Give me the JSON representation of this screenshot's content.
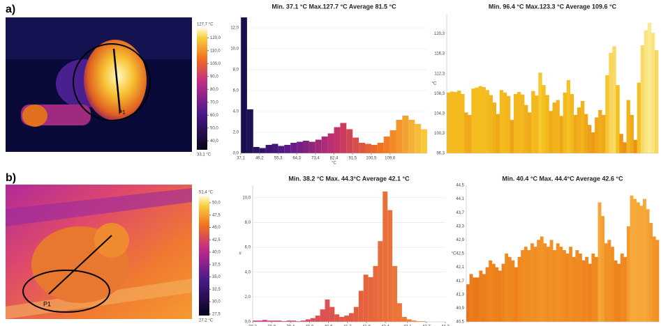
{
  "panels": [
    {
      "label": "a)",
      "point": "P1",
      "colorbar": {
        "lim": [
          33.1,
          127.7
        ],
        "ends": [
          {
            "value": 127.7,
            "label": "127,7 °C"
          },
          {
            "value": 33.1,
            "label": "33,1 °C"
          }
        ],
        "ticks": [
          {
            "value": 40,
            "label": "40,0"
          },
          {
            "value": 50,
            "label": "50,0"
          },
          {
            "value": 60,
            "label": "60,0"
          },
          {
            "value": 70,
            "label": "70,0"
          },
          {
            "value": 80,
            "label": "80,0"
          },
          {
            "value": 90,
            "label": "90,0"
          },
          {
            "value": 100,
            "label": "100,0"
          },
          {
            "value": 110,
            "label": "110,0"
          },
          {
            "value": 120,
            "label": "120,0"
          }
        ]
      }
    },
    {
      "label": "b)",
      "point": "P1",
      "colorbar": {
        "lim": [
          27.2,
          51.4
        ],
        "ends": [
          {
            "value": 51.4,
            "label": "51,4 °C"
          },
          {
            "value": 27.2,
            "label": "27,2 °C"
          }
        ],
        "ticks": [
          {
            "value": 27.5,
            "label": "27,5"
          },
          {
            "value": 30,
            "label": "30,0"
          },
          {
            "value": 32.5,
            "label": "32,5"
          },
          {
            "value": 35,
            "label": "35,0"
          },
          {
            "value": 37.5,
            "label": "37,5"
          },
          {
            "value": 40,
            "label": "40,0"
          },
          {
            "value": 42.5,
            "label": "42,5"
          },
          {
            "value": 45,
            "label": "45,0"
          },
          {
            "value": 47.5,
            "label": "47,5"
          },
          {
            "value": 50,
            "label": "50,0"
          }
        ]
      }
    }
  ],
  "chart_data": [
    {
      "type": "histogram",
      "title": "Min. 37.1 °C    Max.127.7 °C   Average  81.5 °C",
      "xlabel": "°C",
      "bins": [
        37.1,
        40.12,
        43.14,
        46.16,
        49.18,
        52.2,
        55.22,
        58.24,
        61.26,
        64.28,
        67.3,
        70.32,
        73.34,
        76.36,
        79.38,
        82.4,
        85.42,
        88.44,
        91.46,
        94.48,
        97.5,
        100.52,
        103.54,
        106.56,
        109.58,
        112.6,
        115.62,
        118.64,
        121.66,
        124.68,
        127.7
      ],
      "values": [
        13,
        4.2,
        0.6,
        0.5,
        0.8,
        0.9,
        0.7,
        0.8,
        1.0,
        1.1,
        1.2,
        1.1,
        1.3,
        1.6,
        1.9,
        2.5,
        2.9,
        2.3,
        1.5,
        1.0,
        0.9,
        0.8,
        1.0,
        1.6,
        2.2,
        3.2,
        3.6,
        3.2,
        2.8,
        2.3
      ],
      "colormap": [
        "#10104a",
        "#5a1a8a",
        "#c03070",
        "#f07020",
        "#f8d040"
      ],
      "xlim": [
        37.1,
        127.7
      ],
      "ylim": [
        0,
        13.2
      ],
      "xticks": [
        {
          "value": 37.1,
          "label": "37,1"
        },
        {
          "value": 46.2,
          "label": "46,2"
        },
        {
          "value": 55.3,
          "label": "55,3"
        },
        {
          "value": 64.3,
          "label": "64,3"
        },
        {
          "value": 73.4,
          "label": "73,4"
        },
        {
          "value": 82.4,
          "label": "82,4"
        },
        {
          "value": 91.5,
          "label": "91,5"
        },
        {
          "value": 100.5,
          "label": "100,5"
        },
        {
          "value": 109.6,
          "label": "109,6"
        }
      ],
      "yticks": [
        {
          "value": 0,
          "label": "0,0"
        },
        {
          "value": 2,
          "label": "2,0"
        },
        {
          "value": 4,
          "label": "4,0"
        },
        {
          "value": 6,
          "label": "6,0"
        },
        {
          "value": 8,
          "label": "8,0"
        },
        {
          "value": 10,
          "label": "10,0"
        },
        {
          "value": 12,
          "label": "12,0"
        }
      ],
      "grid": true
    },
    {
      "type": "bar",
      "title": "Min. 96.4 °C    Max.123.3 °C    Average   109.6 °C",
      "ylabel": "°C",
      "values": [
        108.5,
        108.7,
        108.6,
        108.9,
        108.2,
        104.5,
        104.0,
        109.3,
        109.5,
        109.8,
        109.6,
        109.0,
        108.0,
        106.5,
        104.2,
        109.0,
        108.5,
        107.8,
        103.0,
        108.2,
        108.6,
        108.1,
        106.0,
        104.5,
        108.8,
        107.9,
        112.5,
        110.0,
        108.0,
        104.8,
        106.5,
        107.0,
        103.8,
        108.5,
        111.0,
        108.2,
        104.0,
        105.5,
        106.8,
        104.2,
        102.0,
        100.5,
        103.5,
        105.0,
        104.0,
        112.0,
        116.5,
        117.8,
        110.0,
        100.2,
        98.5,
        107.0,
        104.0,
        99.0,
        110.5,
        118.0,
        121.0,
        122.5,
        120.5,
        117.0
      ],
      "colormap": [
        "#e88a10",
        "#f5c020",
        "#fdf0a0"
      ],
      "ylim": [
        96.3,
        124.3
      ],
      "yticks": [
        {
          "value": 96.3,
          "label": "96,3"
        },
        {
          "value": 100.3,
          "label": "100,3"
        },
        {
          "value": 104.3,
          "label": "104,3"
        },
        {
          "value": 108.3,
          "label": "108,3"
        },
        {
          "value": 112.3,
          "label": "112,3"
        },
        {
          "value": 116.3,
          "label": "116,3"
        },
        {
          "value": 120.3,
          "label": "120,3"
        }
      ],
      "grid": false
    },
    {
      "type": "histogram",
      "title": "Min. 38.2 °C    Max.  44.3°C   Average  42.1 °C",
      "ylabel": "#",
      "bins": [
        38.2,
        38.3525,
        38.505,
        38.6575,
        38.81,
        38.9625,
        39.115,
        39.2675,
        39.42,
        39.5725,
        39.725,
        39.8775,
        40.03,
        40.1825,
        40.335,
        40.4875,
        40.64,
        40.7925,
        40.945,
        41.0975,
        41.25,
        41.4025,
        41.555,
        41.7075,
        41.86,
        42.0125,
        42.165,
        42.3175,
        42.47,
        42.6225,
        42.775,
        42.9275,
        43.08,
        43.2325,
        43.385,
        43.5375,
        43.69,
        43.8425,
        43.995,
        44.1475,
        44.3
      ],
      "values": [
        0.1,
        0.1,
        0.15,
        0.1,
        0.1,
        0.1,
        0.05,
        0.1,
        0.1,
        0.05,
        0.1,
        0.2,
        0.3,
        0.5,
        1.0,
        1.8,
        1.2,
        0.6,
        0.4,
        0.5,
        0.7,
        1.2,
        2.5,
        3.8,
        3.6,
        4.5,
        6.5,
        10.5,
        9.0,
        4.5,
        1.5,
        0.4,
        0.2,
        0.1,
        0.05,
        0.05,
        0,
        0,
        0,
        0
      ],
      "colormap": [
        "#c83a8a",
        "#e25a40",
        "#f59030"
      ],
      "xlim": [
        38.2,
        44.3
      ],
      "ylim": [
        0,
        11
      ],
      "xticks": [
        {
          "value": 38.2,
          "label": "38,2"
        },
        {
          "value": 38.8,
          "label": "38,8"
        },
        {
          "value": 39.4,
          "label": "39,4"
        },
        {
          "value": 40,
          "label": "40,0"
        },
        {
          "value": 40.6,
          "label": "40,6"
        },
        {
          "value": 41.2,
          "label": "41,2"
        },
        {
          "value": 41.8,
          "label": "41,8"
        },
        {
          "value": 42.4,
          "label": "42,4"
        },
        {
          "value": 43.1,
          "label": "43,1"
        },
        {
          "value": 43.7,
          "label": "43,7"
        },
        {
          "value": 44.3,
          "label": "44,3"
        }
      ],
      "yticks": [
        {
          "value": 0,
          "label": "0,0"
        },
        {
          "value": 2,
          "label": "2,0"
        },
        {
          "value": 4,
          "label": "4,0"
        },
        {
          "value": 6,
          "label": "6,0"
        },
        {
          "value": 8,
          "label": "8,0"
        },
        {
          "value": 10,
          "label": "10,0"
        }
      ],
      "grid": true
    },
    {
      "type": "bar",
      "title": "Min. 40.4 °C    Max. 44.4°C   Average  42.6 °C",
      "ylabel": "°C",
      "values": [
        41.6,
        41.9,
        41.8,
        41.8,
        42.0,
        41.9,
        42.1,
        42.3,
        42.2,
        42.1,
        42.0,
        42.2,
        42.5,
        42.4,
        42.3,
        42.1,
        42.4,
        42.6,
        42.7,
        42.6,
        42.8,
        42.7,
        42.9,
        43.0,
        42.8,
        42.7,
        42.9,
        42.6,
        42.8,
        42.7,
        42.6,
        42.5,
        42.7,
        42.4,
        42.6,
        42.5,
        42.3,
        42.4,
        42.2,
        42.5,
        42.4,
        44.0,
        43.6,
        42.8,
        42.9,
        42.7,
        42.3,
        42.2,
        42.5,
        42.4,
        43.3,
        44.2,
        44.1,
        44.0,
        43.9,
        44.1,
        43.8,
        43.4,
        43.0,
        42.9
      ],
      "colormap": [
        "#e05a10",
        "#f08a20",
        "#f8b040"
      ],
      "ylim": [
        40.5,
        44.5
      ],
      "yticks": [
        {
          "value": 40.5,
          "label": "40,5"
        },
        {
          "value": 40.9,
          "label": "40,9"
        },
        {
          "value": 41.3,
          "label": "41,3"
        },
        {
          "value": 41.7,
          "label": "41,7"
        },
        {
          "value": 42.1,
          "label": "42,1"
        },
        {
          "value": 42.5,
          "label": "42,5"
        },
        {
          "value": 42.9,
          "label": "42,9"
        },
        {
          "value": 43.3,
          "label": "43,3"
        },
        {
          "value": 43.7,
          "label": "43,7"
        },
        {
          "value": 44.1,
          "label": "44,1"
        },
        {
          "value": 44.5,
          "label": "44,5"
        }
      ],
      "grid": false
    }
  ]
}
